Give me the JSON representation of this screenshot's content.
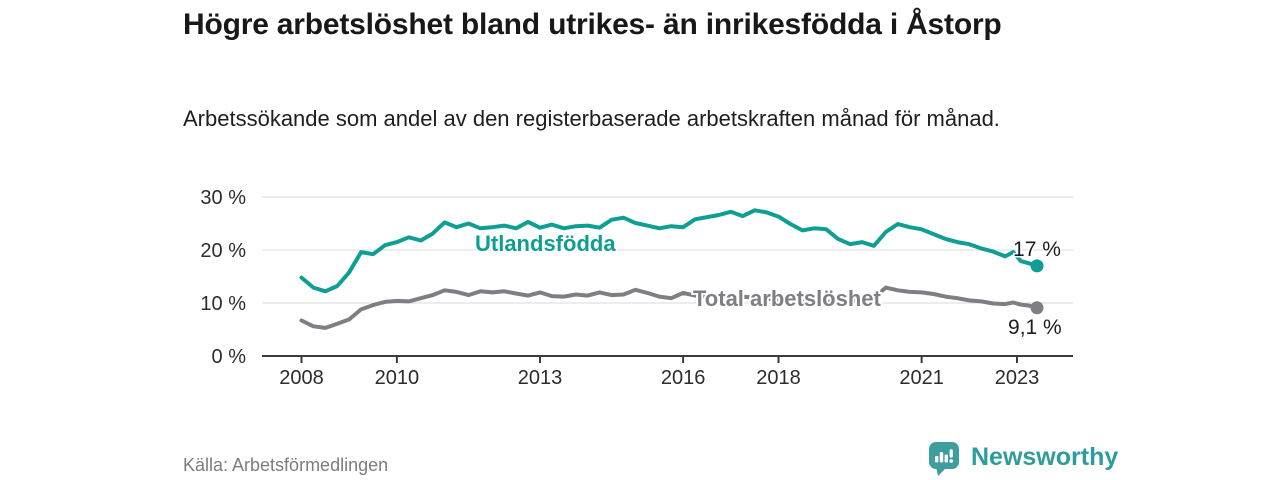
{
  "header": {
    "title": "Högre arbetslöshet bland utrikes- än inrikesfödda i Åstorp",
    "subtitle": "Arbetssökande som andel av den registerbaserade arbetskraften månad för månad."
  },
  "footer": {
    "source": "Källa: Arbetsförmedlingen",
    "brand": "Newsworthy"
  },
  "colors": {
    "foreign_born_line": "#0f9e93",
    "total_line": "#7e7e85",
    "grid": "#d9d9d9",
    "axis": "#3a3a3a",
    "tick_label": "#2c2c2c",
    "end_label": "#1d1d1d",
    "logo_teal": "#3e9d9d"
  },
  "chart_data": {
    "type": "line",
    "title": "Högre arbetslöshet bland utrikes- än inrikesfödda i Åstorp",
    "xlabel": "",
    "ylabel": "Arbetssökande som andel av den registerbaserade arbetskraften",
    "grid": "horizontal",
    "legend_position": "inline-labels",
    "xlim": [
      2007.2,
      2024.2
    ],
    "ylim": [
      0,
      32
    ],
    "x_ticks": [
      2008,
      2010,
      2013,
      2016,
      2018,
      2021,
      2023
    ],
    "y_ticks": [
      0,
      10,
      20,
      30
    ],
    "y_tick_suffix": " %",
    "x": [
      2008.0,
      2008.25,
      2008.5,
      2008.75,
      2009.0,
      2009.25,
      2009.5,
      2009.75,
      2010.0,
      2010.25,
      2010.5,
      2010.75,
      2011.0,
      2011.25,
      2011.5,
      2011.75,
      2012.0,
      2012.25,
      2012.5,
      2012.75,
      2013.0,
      2013.25,
      2013.5,
      2013.75,
      2014.0,
      2014.25,
      2014.5,
      2014.75,
      2015.0,
      2015.25,
      2015.5,
      2015.75,
      2016.0,
      2016.25,
      2016.5,
      2016.75,
      2017.0,
      2017.25,
      2017.5,
      2017.75,
      2018.0,
      2018.25,
      2018.5,
      2018.75,
      2019.0,
      2019.25,
      2019.5,
      2019.75,
      2020.0,
      2020.25,
      2020.5,
      2020.75,
      2021.0,
      2021.25,
      2021.5,
      2021.75,
      2022.0,
      2022.25,
      2022.5,
      2022.75,
      2022.92,
      2023.08,
      2023.25,
      2023.42
    ],
    "series": [
      {
        "name": "Utlandsfödda",
        "color": "#0f9e93",
        "end_label": "17 %",
        "end_value": 17.0,
        "values": [
          14.8,
          12.9,
          12.2,
          13.2,
          15.8,
          19.6,
          19.2,
          20.9,
          21.5,
          22.4,
          21.8,
          23.1,
          25.2,
          24.3,
          25.0,
          24.1,
          24.3,
          24.6,
          24.1,
          25.3,
          24.2,
          24.8,
          24.1,
          24.5,
          24.6,
          24.2,
          25.7,
          26.1,
          25.1,
          24.6,
          24.1,
          24.5,
          24.3,
          25.8,
          26.2,
          26.6,
          27.2,
          26.4,
          27.5,
          27.1,
          26.3,
          24.9,
          23.7,
          24.1,
          23.9,
          22.1,
          21.1,
          21.5,
          20.8,
          23.4,
          24.9,
          24.3,
          23.9,
          23.0,
          22.1,
          21.5,
          21.1,
          20.3,
          19.7,
          18.8,
          19.6,
          17.9,
          17.5,
          17.0
        ]
      },
      {
        "name": "Total arbetslöshet",
        "color": "#7e7e85",
        "end_label": "9,1 %",
        "end_value": 9.1,
        "values": [
          6.7,
          5.6,
          5.3,
          6.1,
          6.9,
          8.8,
          9.6,
          10.2,
          10.4,
          10.3,
          10.9,
          11.5,
          12.4,
          12.1,
          11.5,
          12.2,
          12.0,
          12.2,
          11.8,
          11.4,
          12.0,
          11.3,
          11.2,
          11.6,
          11.4,
          12.0,
          11.5,
          11.6,
          12.5,
          11.9,
          11.2,
          10.9,
          11.9,
          11.4,
          11.3,
          11.6,
          11.4,
          11.2,
          11.0,
          10.8,
          10.7,
          10.5,
          10.4,
          10.3,
          10.2,
          10.4,
          10.3,
          10.5,
          11.0,
          12.9,
          12.4,
          12.1,
          12.0,
          11.7,
          11.2,
          10.9,
          10.5,
          10.3,
          9.9,
          9.8,
          10.1,
          9.7,
          9.5,
          9.1
        ]
      }
    ]
  }
}
